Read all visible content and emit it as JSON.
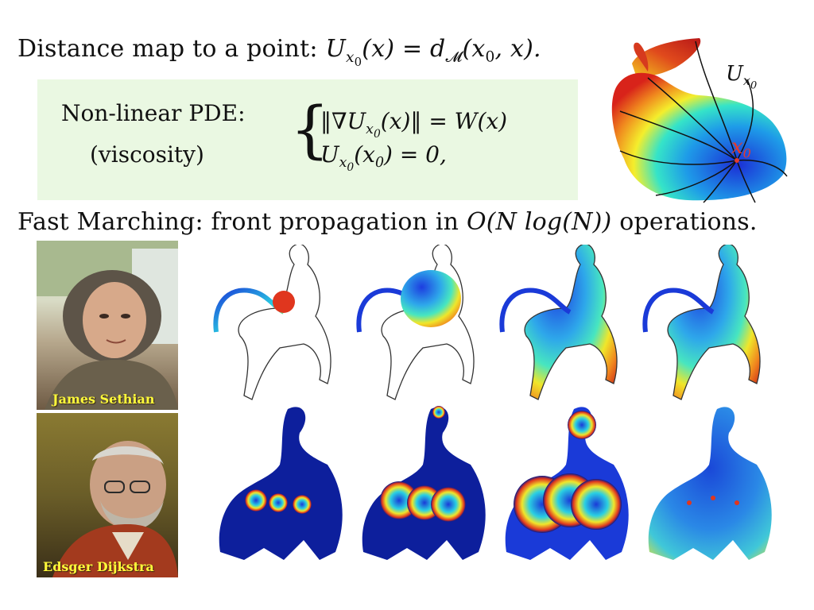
{
  "headline": {
    "prefix": "Distance map to a point:",
    "U": "U",
    "sub_x": "x",
    "sub_0": "0",
    "arg": "(x) = d",
    "sub_M": "𝓜",
    "tail": "(x",
    "tail_sub": "0",
    "tail_end": ", x)."
  },
  "bunny": {
    "label_U": "U",
    "label_sub_x": "x",
    "label_sub_0": "0",
    "point_x": "x",
    "point_0": "0"
  },
  "pde": {
    "label_line1": "Non-linear PDE:",
    "label_line2": "(viscosity)",
    "brace": "{",
    "eq1_open": "‖∇U",
    "eq1_sub_x": "x",
    "eq1_sub_0": "0",
    "eq1_rest": "(x)‖ = W(x)",
    "eq2_U": "U",
    "eq2_sub_x": "x",
    "eq2_sub_0": "0",
    "eq2_arg": "(x",
    "eq2_arg_sub": "0",
    "eq2_rest": ") = 0,"
  },
  "fast_marching": {
    "prefix": "Fast Marching: front propagation in",
    "complexity": "O(N log(N))",
    "suffix": "operations."
  },
  "photos": {
    "sethian_caption": "James Sethian",
    "dijkstra_caption": "Edsger Dijkstra"
  },
  "colors": {
    "pde_box_bg": "#eaf8e2",
    "caption_text": "#fffb3a",
    "annotation_red": "#e23b2e"
  }
}
